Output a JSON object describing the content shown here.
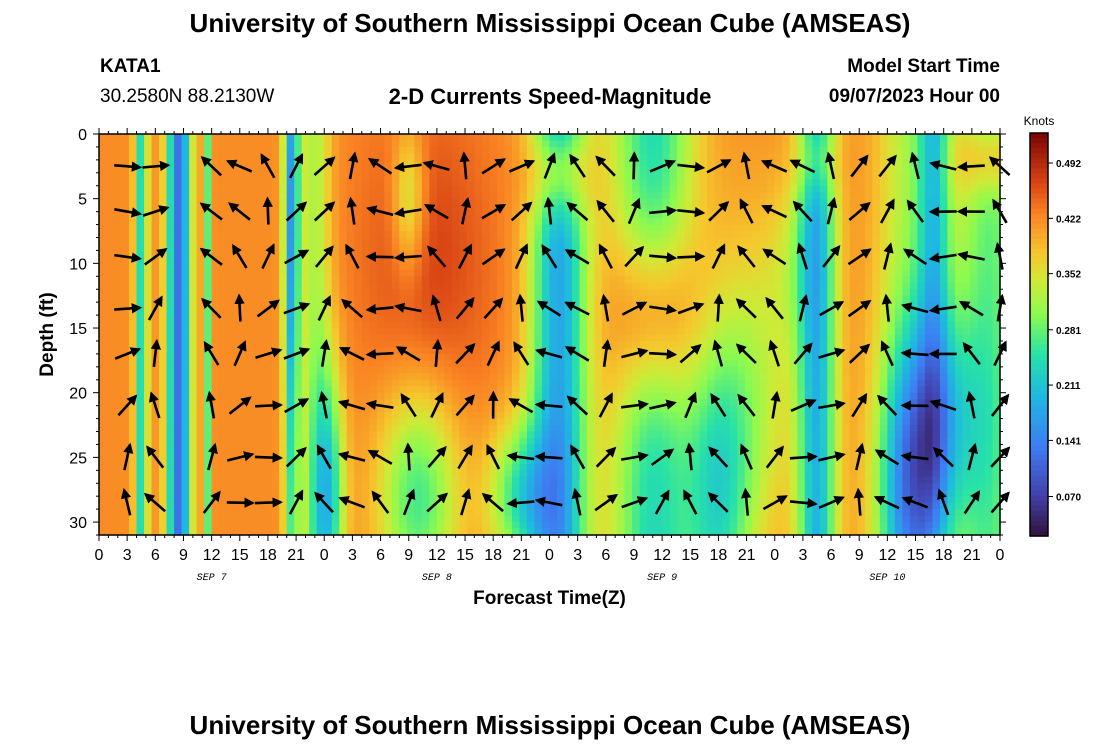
{
  "header": {
    "title": "University of Southern Mississippi Ocean Cube (AMSEAS)",
    "station": "KATA1",
    "coords": "30.2580N  88.2130W",
    "subtitle": "2-D Currents Speed-Magnitude",
    "model_start_label": "Model Start Time",
    "model_start_value": "09/07/2023 Hour 00"
  },
  "footer": {
    "title": "University of Southern Mississippi Ocean Cube (AMSEAS)"
  },
  "chart_data": {
    "type": "heatmap",
    "title": "2-D Currents Speed-Magnitude",
    "xlabel": "Forecast Time(Z)",
    "ylabel": "Depth (ft)",
    "x_range_hours": [
      0,
      96
    ],
    "x_tick_step_hours": 3,
    "x_tick_labels": [
      "0",
      "3",
      "6",
      "9",
      "12",
      "15",
      "18",
      "21",
      "0",
      "3",
      "6",
      "9",
      "12",
      "15",
      "18",
      "21",
      "0",
      "3",
      "6",
      "9",
      "12",
      "15",
      "18",
      "21",
      "0",
      "3",
      "6",
      "9",
      "12",
      "15",
      "18",
      "21",
      "0"
    ],
    "date_labels": [
      {
        "label": "SEP 7",
        "hour": 12
      },
      {
        "label": "SEP 8",
        "hour": 36
      },
      {
        "label": "SEP 9",
        "hour": 60
      },
      {
        "label": "SEP 10",
        "hour": 84
      }
    ],
    "y_range_ft": [
      0,
      31
    ],
    "y_reversed": true,
    "y_ticks": [
      0,
      5,
      10,
      15,
      20,
      25,
      30
    ],
    "colorbar": {
      "title": "Knots",
      "ticks": [
        "0.492",
        "0.422",
        "0.352",
        "0.281",
        "0.211",
        "0.141",
        "0.070"
      ],
      "min": 0.02,
      "max": 0.53
    },
    "vector_hours": [
      3,
      6,
      12,
      15,
      18,
      21,
      24,
      27,
      30,
      33,
      36,
      39,
      42,
      45,
      48,
      51,
      54,
      57,
      60,
      63,
      66,
      69,
      72,
      75,
      78,
      81,
      84,
      87,
      90,
      93,
      96
    ],
    "vector_depths_ft": [
      2.5,
      6,
      9.5,
      13.5,
      17,
      21,
      25,
      28.5
    ]
  }
}
